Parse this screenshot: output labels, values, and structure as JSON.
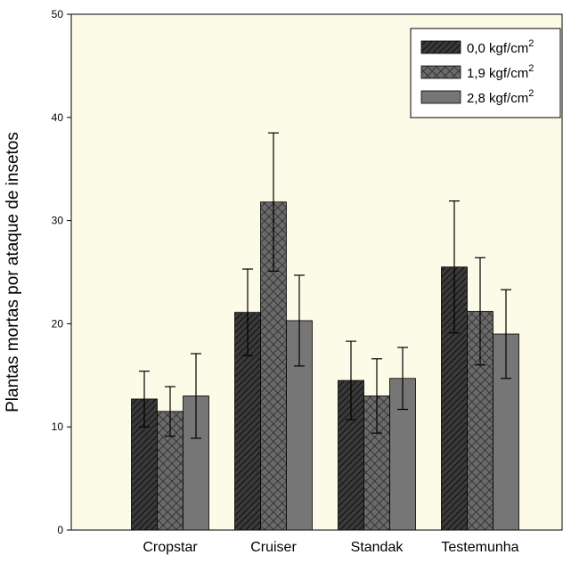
{
  "chart_data": {
    "type": "bar",
    "title": "",
    "xlabel": "",
    "ylabel": "Plantas mortas por ataque de insetos",
    "ylim": [
      0,
      50
    ],
    "yticks": [
      0,
      10,
      20,
      30,
      40,
      50
    ],
    "categories": [
      "Cropstar",
      "Cruiser",
      "Standak",
      "Testemunha"
    ],
    "series": [
      {
        "name": "0,0 kgf/cm",
        "unit_sup": "2",
        "pattern": "diagonal-hatch",
        "color": "#2b2b2b",
        "values": [
          12.7,
          21.1,
          14.5,
          25.5
        ],
        "errors": [
          2.7,
          4.2,
          3.8,
          6.4
        ]
      },
      {
        "name": "1,9 kgf/cm",
        "unit_sup": "2",
        "pattern": "cross-hatch",
        "color": "#5a5a5a",
        "values": [
          11.5,
          31.8,
          13.0,
          21.2
        ],
        "errors": [
          2.4,
          6.7,
          3.6,
          5.2
        ]
      },
      {
        "name": "2,8 kgf/cm",
        "unit_sup": "2",
        "pattern": "solid",
        "color": "#767676",
        "values": [
          13.0,
          20.3,
          14.7,
          19.0
        ],
        "errors": [
          4.1,
          4.4,
          3.0,
          4.3
        ]
      }
    ],
    "legend_position": "top-right",
    "background": "#fcfbe7",
    "grid": false
  }
}
